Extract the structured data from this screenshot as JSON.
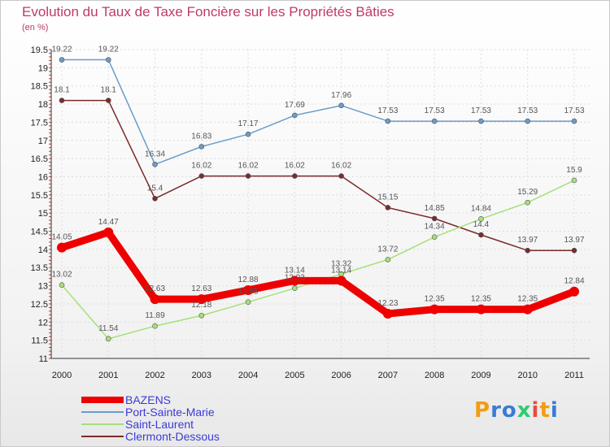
{
  "title": "Evolution du Taux de Taxe Foncière sur les Propriétés Bâties",
  "subtitle": "(en %)",
  "logo": {
    "text": "Proxiti",
    "letters": [
      "P",
      "r",
      "o",
      "x",
      "i",
      "t",
      "i"
    ],
    "colors": [
      "#f39c12",
      "#3a7bd5",
      "#3a7bd5",
      "#2ecc71",
      "#e74c3c",
      "#f39c12",
      "#3a7bd5"
    ]
  },
  "chart_data": {
    "type": "line",
    "title": "Evolution du Taux de Taxe Foncière sur les Propriétés Bâties",
    "ylabel": "(en %)",
    "xlabel": "",
    "categories": [
      "2000",
      "2001",
      "2002",
      "2003",
      "2004",
      "2005",
      "2006",
      "2007",
      "2008",
      "2009",
      "2010",
      "2011"
    ],
    "ylim": [
      11,
      19.5
    ],
    "yticks": [
      11,
      11.5,
      12,
      12.5,
      13,
      13.5,
      14,
      14.5,
      15,
      15.5,
      16,
      16.5,
      17,
      17.5,
      18,
      18.5,
      19,
      19.5
    ],
    "legend_position": "bottom-left",
    "series": [
      {
        "name": "BAZENS",
        "color": "#ee0000",
        "values": [
          14.05,
          14.47,
          12.63,
          12.63,
          12.88,
          13.14,
          13.14,
          12.23,
          12.35,
          12.35,
          12.35,
          12.84
        ]
      },
      {
        "name": "Port-Sainte-Marie",
        "color": "#6a9ccc",
        "values": [
          19.22,
          19.22,
          16.34,
          16.83,
          17.17,
          17.69,
          17.96,
          17.53,
          17.53,
          17.53,
          17.53,
          17.53
        ]
      },
      {
        "name": "Saint-Laurent",
        "color": "#a6e07a",
        "values": [
          13.02,
          11.54,
          11.89,
          12.18,
          12.55,
          12.93,
          13.32,
          13.72,
          14.34,
          14.84,
          15.29,
          15.9
        ]
      },
      {
        "name": "Clermont-Dessous",
        "color": "#7a2b2b",
        "values": [
          18.1,
          18.1,
          15.4,
          16.02,
          16.02,
          16.02,
          16.02,
          15.15,
          14.85,
          14.4,
          13.97,
          13.97
        ]
      }
    ]
  }
}
